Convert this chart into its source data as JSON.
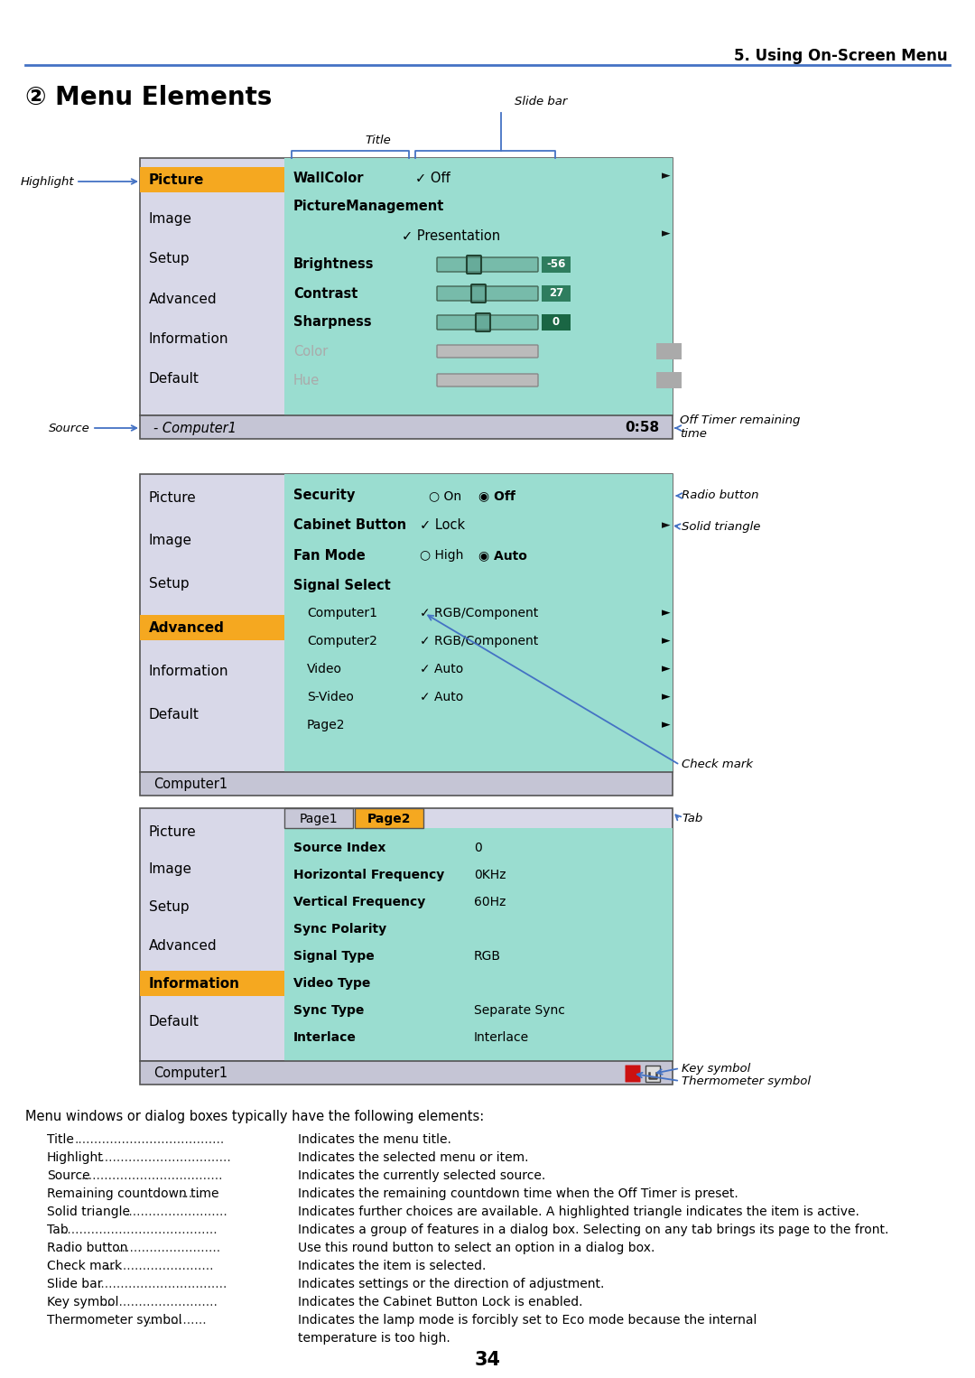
{
  "page_header": "5. Using On-Screen Menu",
  "section_title": "② Menu Elements",
  "bg_color": "#ffffff",
  "header_line_color": "#4472c4",
  "menu_bg": "#d8d8e8",
  "menu_highlight": "#f5a820",
  "content_bg": "#9addd0",
  "status_bar_bg": "#c5c5d5",
  "footer_page": "34"
}
